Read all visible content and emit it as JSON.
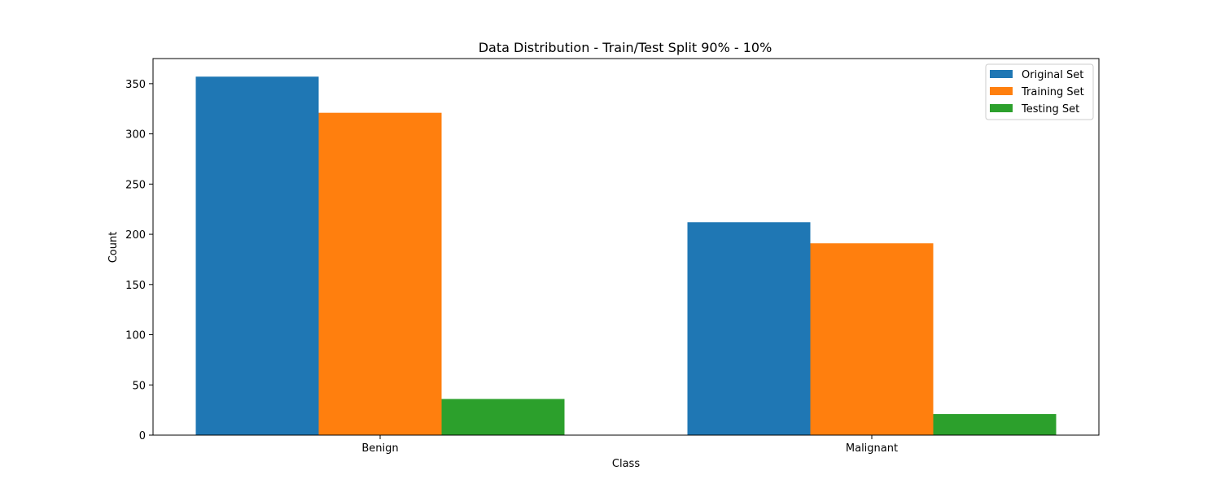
{
  "chart_data": {
    "type": "bar",
    "title": "Data Distribution - Train/Test Split 90% - 10%",
    "xlabel": "Class",
    "ylabel": "Count",
    "categories": [
      "Benign",
      "Malignant"
    ],
    "series": [
      {
        "name": "Original Set",
        "values": [
          357,
          212
        ],
        "color": "#1f77b4"
      },
      {
        "name": "Training Set",
        "values": [
          321,
          191
        ],
        "color": "#ff7f0e"
      },
      {
        "name": "Testing Set",
        "values": [
          36,
          21
        ],
        "color": "#2ca02c"
      }
    ],
    "ylim": [
      0,
      375
    ],
    "yticks": [
      0,
      50,
      100,
      150,
      200,
      250,
      300,
      350
    ],
    "grid": false,
    "legend_position": "top-right"
  }
}
